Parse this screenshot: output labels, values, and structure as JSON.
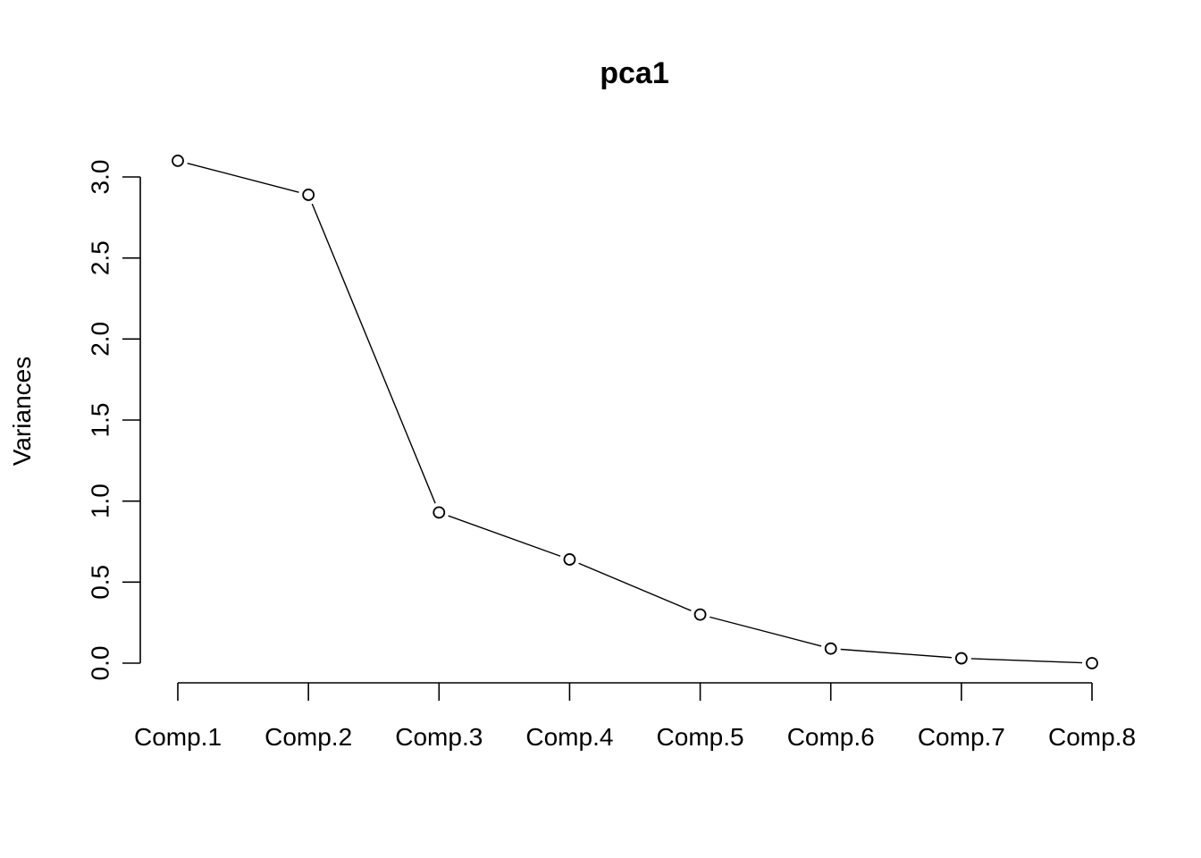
{
  "chart_data": {
    "type": "line",
    "title": "pca1",
    "xlabel": "",
    "ylabel": "Variances",
    "categories": [
      "Comp.1",
      "Comp.2",
      "Comp.3",
      "Comp.4",
      "Comp.5",
      "Comp.6",
      "Comp.7",
      "Comp.8"
    ],
    "series": [
      {
        "values": [
          3.1,
          2.89,
          0.93,
          0.64,
          0.3,
          0.09,
          0.03,
          0.0
        ]
      }
    ],
    "y_ticks": [
      "0.0",
      "0.5",
      "1.0",
      "1.5",
      "2.0",
      "2.5",
      "3.0"
    ],
    "ylim": [
      0,
      3.0
    ],
    "markers": "open-circle",
    "grid": false,
    "legend": "none"
  }
}
